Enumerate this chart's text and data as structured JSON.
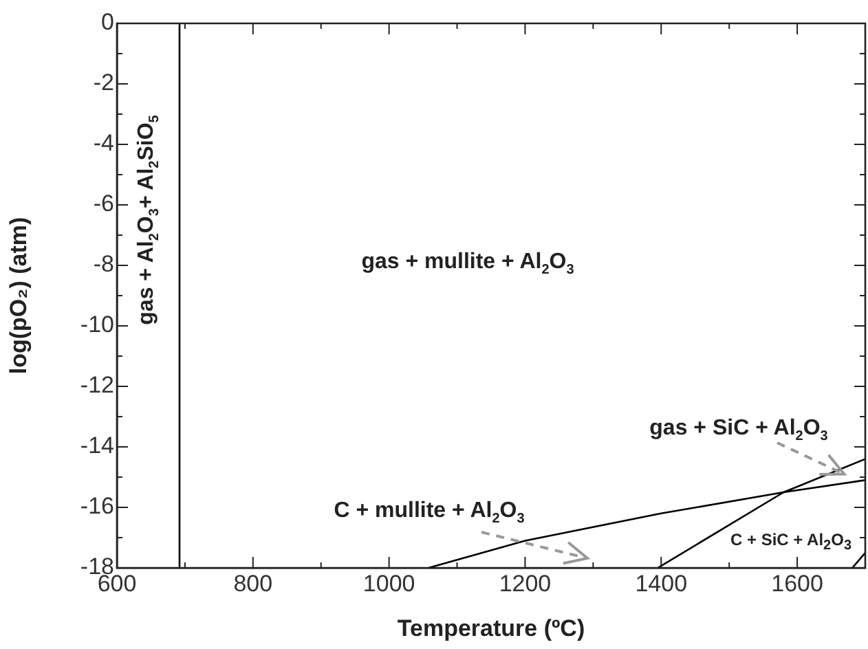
{
  "chart_data": {
    "type": "line",
    "xlabel": "Temperature (ºC)",
    "ylabel": "log(pO₂) (atm)",
    "xlim": [
      600,
      1700
    ],
    "ylim": [
      -18,
      0
    ],
    "xticks": [
      600,
      {
        "value": 700,
        "label": null
      },
      800,
      {
        "value": 900,
        "label": null
      },
      1000,
      {
        "value": 1100,
        "label": null
      },
      1200,
      {
        "value": 1300,
        "label": null
      },
      1400,
      {
        "value": 1500,
        "label": null
      },
      1600,
      {
        "value": 1700,
        "label": null
      }
    ],
    "yticks": [
      -18,
      {
        "value": -17,
        "label": null
      },
      -16,
      {
        "value": -15,
        "label": null
      },
      -14,
      {
        "value": -13,
        "label": null
      },
      -12,
      {
        "value": -11,
        "label": null
      },
      -10,
      {
        "value": -9,
        "label": null
      },
      -8,
      {
        "value": -7,
        "label": null
      },
      -6,
      {
        "value": -5,
        "label": null
      },
      -4,
      {
        "value": -3,
        "label": null
      },
      -2,
      {
        "value": -1,
        "label": null
      },
      0
    ],
    "series": [
      {
        "color": "#000000",
        "x": [
          692,
          692
        ],
        "values": [
          -18,
          0
        ]
      },
      {
        "color": "#000000",
        "x": [
          1058,
          1200,
          1400,
          1580,
          1700
        ],
        "values": [
          -18,
          -17.1,
          -16.2,
          -15.5,
          -15.1
        ]
      },
      {
        "color": "#000000",
        "x": [
          1395,
          1580,
          1700
        ],
        "values": [
          -18,
          -15.5,
          -14.4
        ]
      },
      {
        "color": "#000000",
        "x": [
          1681,
          1700
        ],
        "values": [
          -18,
          -17.5
        ]
      }
    ],
    "annotations": [
      "gas + mullite + Al$_{2}$O$_{3}$",
      {
        "text": "gas + SiC + Al$_{2}$O$_{3}$",
        "x": 1669,
        "y": -14.9
      },
      "C + mullite + Al$_{2}$O$_{3}$",
      "C + SiC + Al$_{2}$O$_{3}$",
      "gas + Al$_{2}$O$_{3}$+ Al$_{2}$SiO$_{5}$"
    ],
    "grid": false,
    "legend": false,
    "marker": "none",
    "line_style": "solid"
  }
}
